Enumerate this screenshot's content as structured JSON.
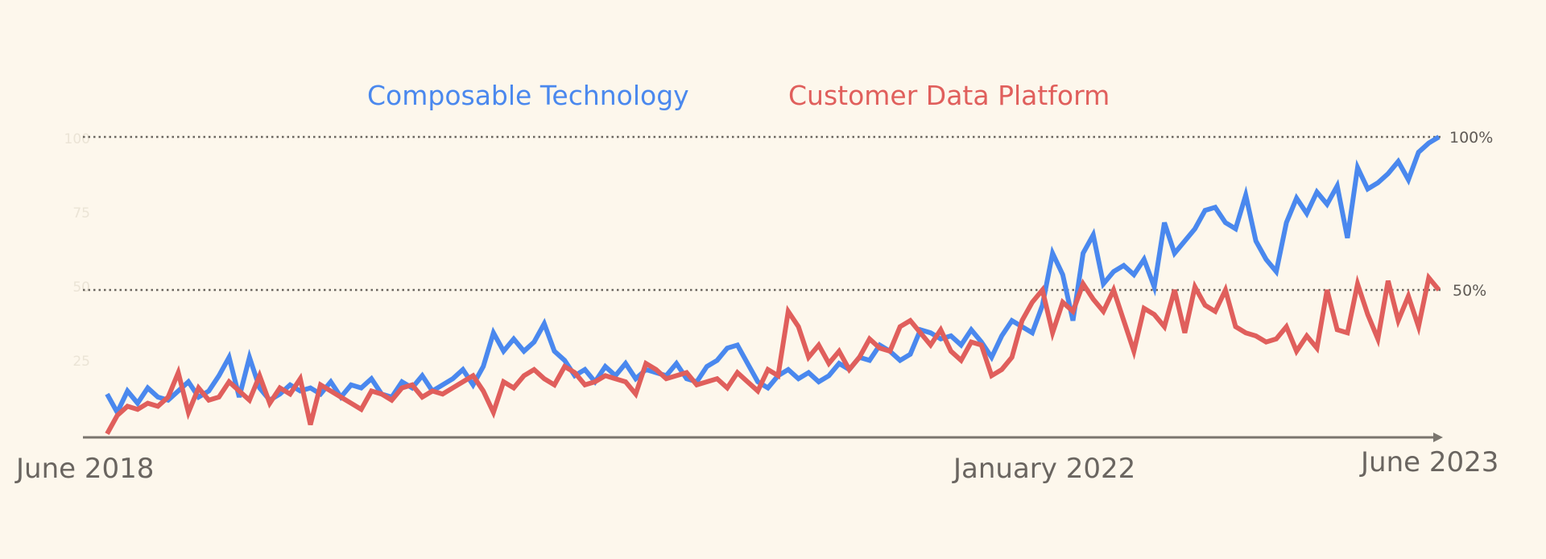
{
  "chart_data": {
    "type": "line",
    "title": "",
    "xlabel": "",
    "ylabel": "",
    "ylim": [
      0,
      100
    ],
    "x_range": [
      "June 2018",
      "June 2023"
    ],
    "x_tick_labels": [
      "June 2018",
      "January 2022",
      "June 2023"
    ],
    "y_tick_labels": [
      "100",
      "75",
      "50",
      "25"
    ],
    "reference_lines": [
      {
        "value": 100,
        "label": "100%"
      },
      {
        "value": 50,
        "label": "50%"
      }
    ],
    "grid": false,
    "legend_placement": "top-center",
    "series": [
      {
        "name": "Composable Technology",
        "color": "#4a88ee",
        "values": [
          16,
          10,
          17,
          13,
          18,
          15,
          14,
          17,
          20,
          15,
          17,
          22,
          28,
          15,
          28,
          18,
          14,
          16,
          19,
          17,
          18,
          16,
          20,
          15,
          19,
          18,
          21,
          16,
          15,
          20,
          18,
          22,
          17,
          19,
          21,
          24,
          19,
          25,
          36,
          30,
          34,
          30,
          33,
          39,
          30,
          27,
          22,
          24,
          20,
          25,
          22,
          26,
          21,
          24,
          23,
          22,
          26,
          21,
          20,
          25,
          27,
          31,
          32,
          26,
          20,
          18,
          22,
          24,
          21,
          23,
          20,
          22,
          26,
          24,
          28,
          27,
          32,
          30,
          27,
          29,
          37,
          36,
          34,
          35,
          32,
          37,
          33,
          28,
          35,
          40,
          38,
          36,
          45,
          62,
          55,
          40,
          62,
          68,
          52,
          56,
          58,
          55,
          60,
          51,
          72,
          62,
          66,
          70,
          76,
          77,
          72,
          70,
          81,
          66,
          60,
          56,
          72,
          80,
          75,
          82,
          78,
          84,
          67,
          90,
          83,
          85,
          88,
          92,
          86,
          95,
          98,
          100
        ]
      },
      {
        "name": "Customer Data Platform",
        "color": "#e05f5c",
        "values": [
          3,
          9,
          12,
          11,
          13,
          12,
          15,
          23,
          10,
          18,
          14,
          15,
          20,
          17,
          14,
          22,
          13,
          18,
          16,
          21,
          6,
          19,
          17,
          15,
          13,
          11,
          17,
          16,
          14,
          18,
          19,
          15,
          17,
          16,
          18,
          20,
          22,
          17,
          10,
          20,
          18,
          22,
          24,
          21,
          19,
          25,
          23,
          19,
          20,
          22,
          21,
          20,
          16,
          26,
          24,
          21,
          22,
          23,
          19,
          20,
          21,
          18,
          23,
          20,
          17,
          24,
          22,
          43,
          38,
          28,
          32,
          26,
          30,
          24,
          28,
          34,
          31,
          30,
          38,
          40,
          36,
          32,
          37,
          30,
          27,
          33,
          32,
          22,
          24,
          28,
          40,
          46,
          50,
          36,
          46,
          43,
          52,
          47,
          43,
          50,
          40,
          30,
          44,
          42,
          38,
          50,
          36,
          51,
          45,
          43,
          50,
          38,
          36,
          35,
          33,
          34,
          38,
          30,
          35,
          31,
          50,
          37,
          36,
          52,
          42,
          34,
          53,
          40,
          48,
          38,
          54,
          50
        ]
      }
    ]
  },
  "colors": {
    "background": "#fdf7ec",
    "axis": "#7a756e",
    "reference_line": "#6b665f"
  }
}
